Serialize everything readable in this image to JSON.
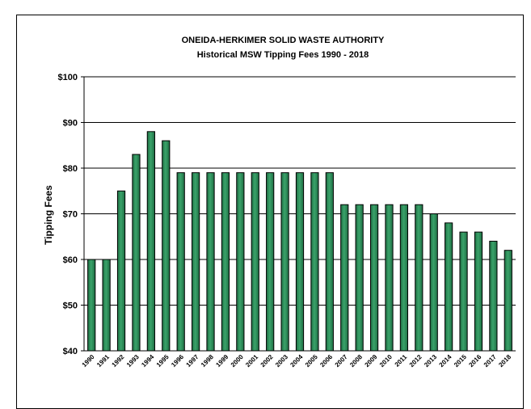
{
  "chart_data": {
    "type": "bar",
    "title": "ONEIDA-HERKIMER SOLID WASTE AUTHORITY",
    "subtitle": "Historical MSW Tipping Fees 1990 - 2018",
    "xlabel": "",
    "ylabel": "Tipping Fees",
    "ylim": [
      40,
      100
    ],
    "y_ticks": [
      "$40",
      "$50",
      "$60",
      "$70",
      "$80",
      "$90",
      "$100"
    ],
    "grid": true,
    "legend": "none",
    "bar_color": "#2e8b57",
    "categories": [
      "1990",
      "1991",
      "1992",
      "1993",
      "1994",
      "1995",
      "1996",
      "1997",
      "1998",
      "1999",
      "2000",
      "2001",
      "2002",
      "2003",
      "2004",
      "2005",
      "2006",
      "2007",
      "2008",
      "2009",
      "2010",
      "2011",
      "2012",
      "2013",
      "2014",
      "2015",
      "2016",
      "2017",
      "2018"
    ],
    "values": [
      60,
      60,
      75,
      83,
      88,
      86,
      79,
      79,
      79,
      79,
      79,
      79,
      79,
      79,
      79,
      79,
      79,
      72,
      72,
      72,
      72,
      72,
      72,
      70,
      68,
      66,
      66,
      64,
      62
    ]
  }
}
